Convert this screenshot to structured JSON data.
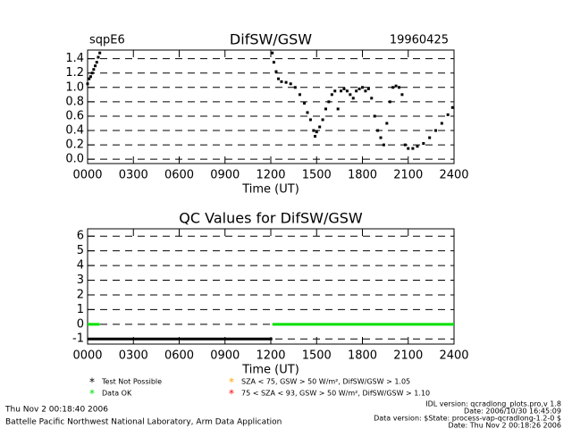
{
  "chart_data": [
    {
      "type": "scatter",
      "title": "DifSW/GSW",
      "site": "sqpE6",
      "date": "19960425",
      "xlabel": "Time (UT)",
      "xlim": [
        0,
        24
      ],
      "xticks": [
        {
          "value": 0,
          "label": "0000"
        },
        {
          "value": 3,
          "label": "0300"
        },
        {
          "value": 6,
          "label": "0600"
        },
        {
          "value": 9,
          "label": "0900"
        },
        {
          "value": 12,
          "label": "1200"
        },
        {
          "value": 15,
          "label": "1500"
        },
        {
          "value": 18,
          "label": "1800"
        },
        {
          "value": 21,
          "label": "2100"
        },
        {
          "value": 24,
          "label": "2400"
        }
      ],
      "ylim": [
        -0.06,
        1.52
      ],
      "yticks": [
        {
          "value": 0,
          "label": "0.0"
        },
        {
          "value": 0.2,
          "label": "0.2"
        },
        {
          "value": 0.4,
          "label": "0.4"
        },
        {
          "value": 0.6,
          "label": "0.6"
        },
        {
          "value": 0.8,
          "label": "0.8"
        },
        {
          "value": 1,
          "label": "1.0"
        },
        {
          "value": 1.2,
          "label": "1.2"
        },
        {
          "value": 1.4,
          "label": "1.4"
        }
      ],
      "grid": true,
      "grid_style": "dashed",
      "series": [
        {
          "color": "#000000",
          "x": [
            0,
            0.1,
            0.2,
            0.3,
            0.4,
            0.5,
            0.6,
            0.7,
            0.8,
            12.1,
            12.2,
            12.35,
            12.5,
            12.7,
            13,
            13.3,
            13.6,
            13.9,
            14.2,
            14.4,
            14.6,
            14.8,
            14.9,
            15,
            15.2,
            15.4,
            15.6,
            15.8,
            16,
            16.2,
            16.4,
            16.6,
            16.8,
            17,
            17.2,
            17.4,
            17.6,
            17.8,
            18,
            18.2,
            18.4,
            18.6,
            18.8,
            19,
            19.2,
            19.4,
            19.6,
            19.8,
            20,
            20.2,
            20.4,
            20.6,
            20.8,
            21,
            21.3,
            21.6,
            22,
            22.4,
            22.8,
            23.2,
            23.6,
            23.9
          ],
          "values": [
            1.05,
            1.12,
            1.15,
            1.2,
            1.25,
            1.3,
            1.35,
            1.42,
            1.48,
            1.48,
            1.35,
            1.22,
            1.12,
            1.08,
            1.07,
            1.05,
            1.0,
            0.9,
            0.78,
            0.65,
            0.55,
            0.4,
            0.32,
            0.38,
            0.45,
            0.55,
            0.7,
            0.8,
            0.9,
            0.95,
            0.7,
            0.95,
            0.98,
            0.95,
            0.9,
            0.85,
            0.95,
            0.98,
            1.0,
            0.95,
            0.98,
            0.85,
            0.6,
            0.4,
            0.3,
            0.2,
            0.5,
            0.8,
            1.0,
            1.02,
            1.0,
            0.9,
            0.2,
            0.15,
            0.15,
            0.18,
            0.22,
            0.3,
            0.4,
            0.5,
            0.62,
            0.72
          ]
        }
      ]
    },
    {
      "type": "line",
      "title": "QC Values for DifSW/GSW",
      "xlabel": "Time (UT)",
      "xlim": [
        0,
        24
      ],
      "xticks": [
        {
          "value": 0,
          "label": "0000"
        },
        {
          "value": 3,
          "label": "0300"
        },
        {
          "value": 6,
          "label": "0600"
        },
        {
          "value": 9,
          "label": "0900"
        },
        {
          "value": 12,
          "label": "1200"
        },
        {
          "value": 15,
          "label": "1500"
        },
        {
          "value": 18,
          "label": "1800"
        },
        {
          "value": 21,
          "label": "2100"
        },
        {
          "value": 24,
          "label": "2400"
        }
      ],
      "ylim": [
        -1.35,
        6.5
      ],
      "yticks": [
        -1,
        0,
        1,
        2,
        3,
        4,
        5,
        6
      ],
      "grid": true,
      "grid_style": "dashed",
      "series": [
        {
          "name": "Test Not Possible",
          "color": "#000000",
          "x": [
            0,
            12.1
          ],
          "values": [
            -1,
            -1
          ]
        },
        {
          "name": "Data OK",
          "color": "#00e000",
          "x": [
            0,
            0.8,
            6,
            12.1,
            24
          ],
          "values": [
            0,
            0,
            null,
            0,
            0
          ]
        },
        {
          "name": "SZA < 75, GSW > 50 W/m², DifSW/GSW > 1.05",
          "color": "#ffa500",
          "x": [],
          "values": []
        },
        {
          "name": "75 < SZA < 93, GSW > 50 W/m², DifSW/GSW > 1.10",
          "color": "#ff0000",
          "x": [],
          "values": []
        }
      ]
    }
  ],
  "footer": {
    "left": [
      "Thu Nov  2 00:18:40 2006",
      "Battelle Pacific Northwest National Laboratory, Arm Data Application"
    ],
    "right": [
      "IDL version: qcradlong_plots.pro,v 1.8",
      "Date: 2006/10/30 16:45:09",
      "Data version: $State: process-vap-qcradlong-1.2-0 $",
      "Date: Thu Nov  2 00:18:26 2006"
    ]
  }
}
